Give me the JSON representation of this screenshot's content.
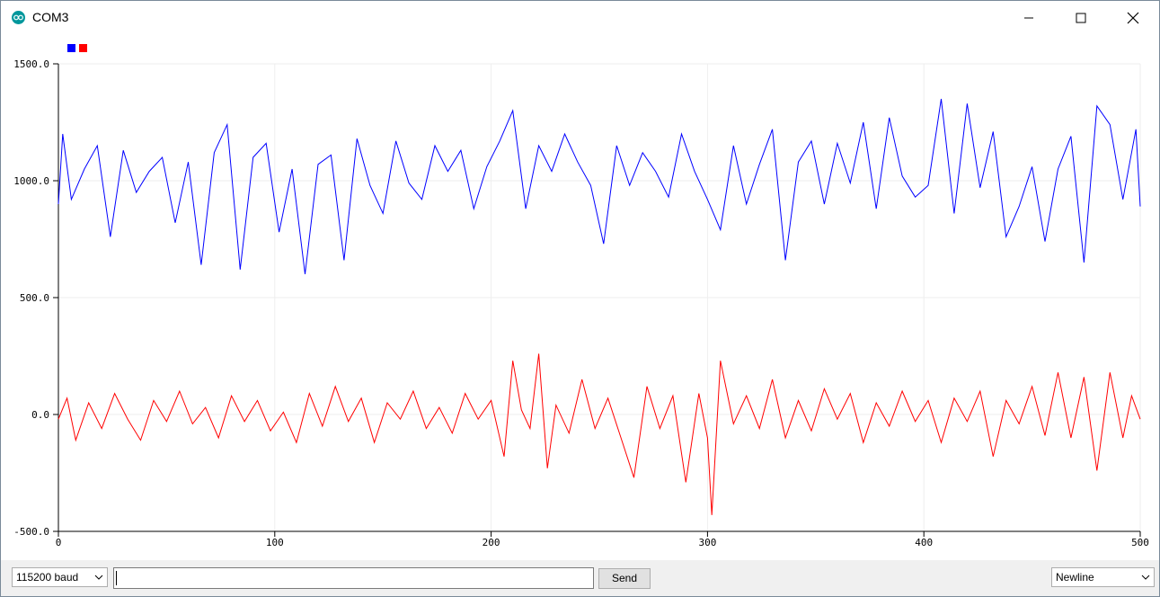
{
  "window": {
    "title": "COM3"
  },
  "colors": {
    "series1": "#0000ff",
    "series2": "#ff0000",
    "grid": "#eeeeee",
    "axis": "#000000"
  },
  "controls": {
    "baud_rate": "115200 baud",
    "message_value": "",
    "send_label": "Send",
    "line_ending": "Newline"
  },
  "chart_data": {
    "type": "line",
    "xlim": [
      0,
      500
    ],
    "ylim": [
      -500,
      1500
    ],
    "x_ticks": [
      "0",
      "100",
      "200",
      "300",
      "400",
      "500"
    ],
    "y_ticks": [
      "1500.0",
      "1000.0",
      "500.0",
      "0.0",
      "-500.0"
    ],
    "grid": true,
    "legend": "top-left, colored squares, no text",
    "series": [
      {
        "color": "#0000ff",
        "points": [
          [
            0,
            900
          ],
          [
            2,
            1200
          ],
          [
            6,
            920
          ],
          [
            12,
            1050
          ],
          [
            18,
            1150
          ],
          [
            24,
            760
          ],
          [
            30,
            1130
          ],
          [
            36,
            950
          ],
          [
            42,
            1040
          ],
          [
            48,
            1100
          ],
          [
            54,
            820
          ],
          [
            60,
            1080
          ],
          [
            66,
            640
          ],
          [
            72,
            1120
          ],
          [
            78,
            1240
          ],
          [
            84,
            620
          ],
          [
            90,
            1100
          ],
          [
            96,
            1160
          ],
          [
            102,
            780
          ],
          [
            108,
            1050
          ],
          [
            114,
            600
          ],
          [
            120,
            1070
          ],
          [
            126,
            1110
          ],
          [
            132,
            660
          ],
          [
            138,
            1180
          ],
          [
            144,
            980
          ],
          [
            150,
            860
          ],
          [
            156,
            1170
          ],
          [
            162,
            990
          ],
          [
            168,
            920
          ],
          [
            174,
            1150
          ],
          [
            180,
            1040
          ],
          [
            186,
            1130
          ],
          [
            192,
            880
          ],
          [
            198,
            1060
          ],
          [
            204,
            1170
          ],
          [
            210,
            1300
          ],
          [
            216,
            880
          ],
          [
            222,
            1150
          ],
          [
            228,
            1040
          ],
          [
            234,
            1200
          ],
          [
            240,
            1080
          ],
          [
            246,
            980
          ],
          [
            252,
            730
          ],
          [
            258,
            1150
          ],
          [
            264,
            980
          ],
          [
            270,
            1120
          ],
          [
            276,
            1040
          ],
          [
            282,
            930
          ],
          [
            288,
            1200
          ],
          [
            294,
            1040
          ],
          [
            300,
            920
          ],
          [
            306,
            790
          ],
          [
            312,
            1150
          ],
          [
            318,
            900
          ],
          [
            324,
            1070
          ],
          [
            330,
            1220
          ],
          [
            336,
            660
          ],
          [
            342,
            1080
          ],
          [
            348,
            1170
          ],
          [
            354,
            900
          ],
          [
            360,
            1160
          ],
          [
            366,
            990
          ],
          [
            372,
            1250
          ],
          [
            378,
            880
          ],
          [
            384,
            1270
          ],
          [
            390,
            1020
          ],
          [
            396,
            930
          ],
          [
            402,
            980
          ],
          [
            408,
            1350
          ],
          [
            414,
            860
          ],
          [
            420,
            1330
          ],
          [
            426,
            970
          ],
          [
            432,
            1210
          ],
          [
            438,
            760
          ],
          [
            444,
            890
          ],
          [
            450,
            1060
          ],
          [
            456,
            740
          ],
          [
            462,
            1050
          ],
          [
            468,
            1190
          ],
          [
            474,
            650
          ],
          [
            480,
            1320
          ],
          [
            486,
            1240
          ],
          [
            492,
            920
          ],
          [
            498,
            1220
          ],
          [
            500,
            890
          ]
        ]
      },
      {
        "color": "#ff0000",
        "points": [
          [
            0,
            -20
          ],
          [
            4,
            70
          ],
          [
            8,
            -110
          ],
          [
            14,
            50
          ],
          [
            20,
            -60
          ],
          [
            26,
            90
          ],
          [
            32,
            -20
          ],
          [
            38,
            -110
          ],
          [
            44,
            60
          ],
          [
            50,
            -30
          ],
          [
            56,
            100
          ],
          [
            62,
            -40
          ],
          [
            68,
            30
          ],
          [
            74,
            -100
          ],
          [
            80,
            80
          ],
          [
            86,
            -30
          ],
          [
            92,
            60
          ],
          [
            98,
            -70
          ],
          [
            104,
            10
          ],
          [
            110,
            -120
          ],
          [
            116,
            90
          ],
          [
            122,
            -50
          ],
          [
            128,
            120
          ],
          [
            134,
            -30
          ],
          [
            140,
            70
          ],
          [
            146,
            -120
          ],
          [
            152,
            50
          ],
          [
            158,
            -20
          ],
          [
            164,
            100
          ],
          [
            170,
            -60
          ],
          [
            176,
            30
          ],
          [
            182,
            -80
          ],
          [
            188,
            90
          ],
          [
            194,
            -20
          ],
          [
            200,
            60
          ],
          [
            206,
            -180
          ],
          [
            210,
            230
          ],
          [
            214,
            20
          ],
          [
            218,
            -60
          ],
          [
            222,
            260
          ],
          [
            226,
            -230
          ],
          [
            230,
            40
          ],
          [
            236,
            -80
          ],
          [
            242,
            150
          ],
          [
            248,
            -60
          ],
          [
            254,
            70
          ],
          [
            260,
            -100
          ],
          [
            266,
            -270
          ],
          [
            272,
            120
          ],
          [
            278,
            -60
          ],
          [
            284,
            80
          ],
          [
            290,
            -290
          ],
          [
            296,
            90
          ],
          [
            300,
            -100
          ],
          [
            302,
            -430
          ],
          [
            306,
            230
          ],
          [
            312,
            -40
          ],
          [
            318,
            80
          ],
          [
            324,
            -60
          ],
          [
            330,
            150
          ],
          [
            336,
            -100
          ],
          [
            342,
            60
          ],
          [
            348,
            -70
          ],
          [
            354,
            110
          ],
          [
            360,
            -20
          ],
          [
            366,
            90
          ],
          [
            372,
            -120
          ],
          [
            378,
            50
          ],
          [
            384,
            -50
          ],
          [
            390,
            100
          ],
          [
            396,
            -30
          ],
          [
            402,
            60
          ],
          [
            408,
            -120
          ],
          [
            414,
            70
          ],
          [
            420,
            -30
          ],
          [
            426,
            100
          ],
          [
            432,
            -180
          ],
          [
            438,
            60
          ],
          [
            444,
            -40
          ],
          [
            450,
            120
          ],
          [
            456,
            -90
          ],
          [
            462,
            180
          ],
          [
            468,
            -100
          ],
          [
            474,
            160
          ],
          [
            480,
            -240
          ],
          [
            486,
            180
          ],
          [
            492,
            -100
          ],
          [
            496,
            80
          ],
          [
            500,
            -20
          ]
        ]
      }
    ]
  }
}
